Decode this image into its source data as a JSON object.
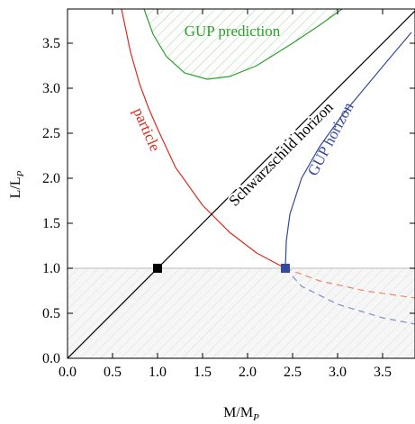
{
  "chart_data": {
    "type": "line",
    "xlabel": "M/M",
    "xlabel_sub": "P",
    "ylabel": "L/L",
    "ylabel_sub": "P",
    "xlim": [
      0,
      3.86
    ],
    "ylim": [
      0,
      3.88
    ],
    "xticks": [
      {
        "value": 0,
        "label": "0.0"
      },
      0.5,
      {
        "value": 1,
        "label": "1.0"
      },
      1.5,
      {
        "value": 2,
        "label": "2.0"
      },
      2.5,
      {
        "value": 3,
        "label": "3.0"
      },
      3.5
    ],
    "yticks": [
      {
        "value": 0,
        "label": "0.0"
      },
      0.5,
      {
        "value": 1,
        "label": "1.0"
      },
      1.5,
      {
        "value": 2,
        "label": "2.0"
      },
      2.5,
      {
        "value": 3,
        "label": "3.0"
      },
      3.5
    ],
    "hline": 1,
    "series": [
      {
        "name": "GUP prediction",
        "color": "#2ca02c",
        "style": "solid",
        "fill": "hatch",
        "x": [
          0.85,
          0.95,
          1.1,
          1.3,
          1.55,
          1.8,
          2.1,
          2.5,
          2.8,
          3.05
        ],
        "values": [
          3.88,
          3.6,
          3.35,
          3.17,
          3.1,
          3.13,
          3.25,
          3.5,
          3.7,
          3.88
        ]
      },
      {
        "name": "particle",
        "color": "#d62c1e",
        "style": "solid",
        "x": [
          0.6,
          0.7,
          0.8,
          0.9,
          1.0,
          1.2,
          1.5,
          1.8,
          2.1,
          2.42
        ],
        "values": [
          3.88,
          3.4,
          3.05,
          2.78,
          2.55,
          2.12,
          1.7,
          1.4,
          1.17,
          1.0
        ]
      },
      {
        "name": "Schwarzschild horizon",
        "color": "#000000",
        "style": "solid",
        "x": [
          0,
          3.86
        ],
        "values": [
          0,
          3.86
        ]
      },
      {
        "name": "GUP horizon",
        "color": "#34489c",
        "style": "solid",
        "x": [
          2.42,
          2.43,
          2.47,
          2.6,
          2.8,
          3.05,
          3.3,
          3.55,
          3.82
        ],
        "values": [
          1.0,
          1.3,
          1.6,
          2.0,
          2.35,
          2.7,
          3.0,
          3.3,
          3.62
        ]
      },
      {
        "color": "#e8876a",
        "style": "dashed",
        "x": [
          2.42,
          2.8,
          3.3,
          3.86
        ],
        "values": [
          1.0,
          0.86,
          0.75,
          0.67
        ]
      },
      {
        "color": "#7f8fd0",
        "style": "dashed",
        "x": [
          2.42,
          2.6,
          3.0,
          3.5,
          3.86
        ],
        "values": [
          1.0,
          0.8,
          0.6,
          0.45,
          0.38
        ]
      }
    ],
    "points": {
      "x": [
        1,
        2.42
      ],
      "values": [
        1,
        1
      ],
      "colors": [
        "#000000",
        "#34489c"
      ]
    }
  }
}
